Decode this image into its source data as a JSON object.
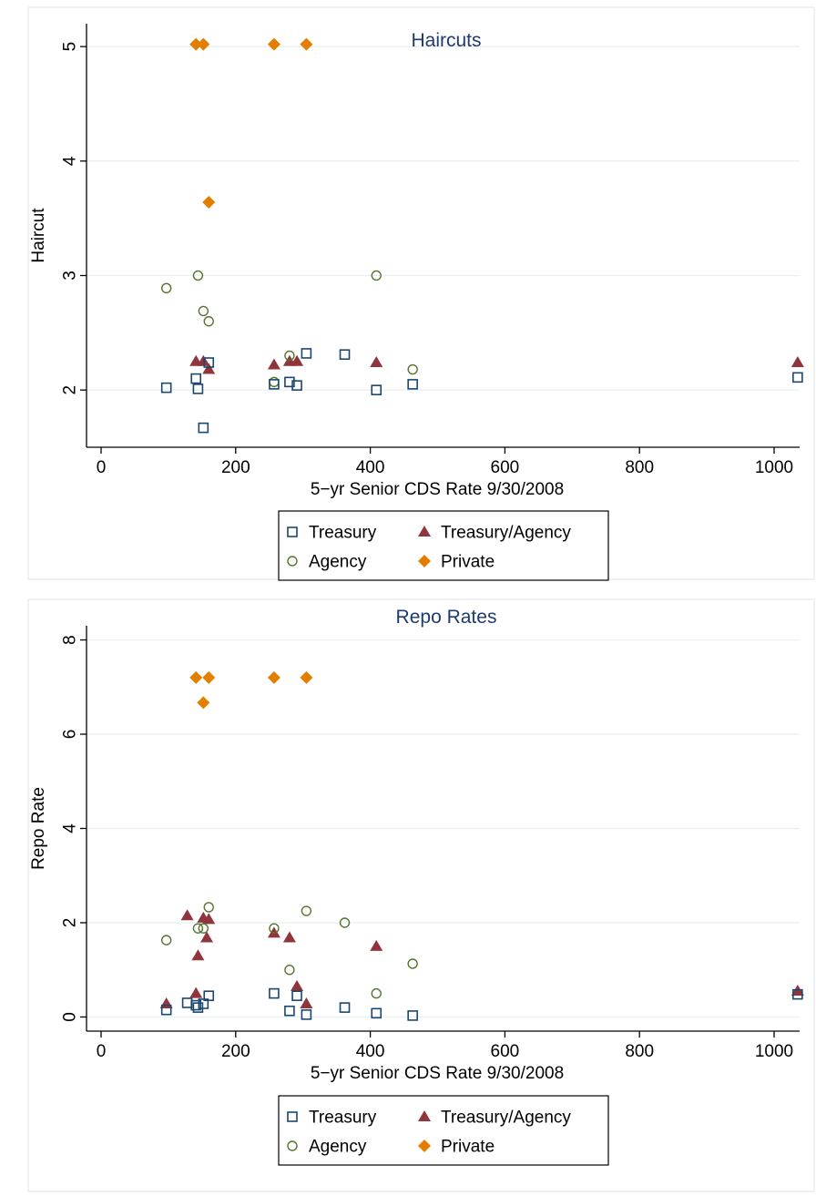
{
  "colors": {
    "treasury": "#1a476f",
    "treasury_agency": "#90353b",
    "agency": "#55752f",
    "private": "#e37e00",
    "title": "#1e3a6e",
    "grid": "#eaf0f2"
  },
  "chart_data": [
    {
      "type": "scatter",
      "title": "Haircuts",
      "xlabel": "5−yr Senior CDS Rate 9/30/2008",
      "ylabel": "Haircut",
      "xlim": [
        0,
        1040
      ],
      "ylim": [
        1.5,
        5.2
      ],
      "xticks": [
        0,
        200,
        400,
        600,
        800,
        1000
      ],
      "yticks": [
        2,
        3,
        4,
        5
      ],
      "grid": true,
      "legend_position": "bottom",
      "series": [
        {
          "name": "Treasury",
          "marker": "square-hollow",
          "points": [
            [
              97,
              2.02
            ],
            [
              141,
              2.1
            ],
            [
              144,
              2.01
            ],
            [
              152,
              1.67
            ],
            [
              160,
              2.24
            ],
            [
              257,
              2.05
            ],
            [
              280,
              2.07
            ],
            [
              291,
              2.04
            ],
            [
              305,
              2.32
            ],
            [
              362,
              2.31
            ],
            [
              409,
              2.0
            ],
            [
              463,
              2.05
            ],
            [
              1035,
              2.11
            ]
          ]
        },
        {
          "name": "Treasury/Agency",
          "marker": "triangle",
          "points": [
            [
              141,
              2.25
            ],
            [
              152,
              2.25
            ],
            [
              160,
              2.18
            ],
            [
              257,
              2.22
            ],
            [
              280,
              2.25
            ],
            [
              291,
              2.25
            ],
            [
              409,
              2.24
            ],
            [
              1035,
              2.24
            ]
          ]
        },
        {
          "name": "Agency",
          "marker": "circle-hollow",
          "points": [
            [
              97,
              2.89
            ],
            [
              144,
              3.0
            ],
            [
              152,
              2.69
            ],
            [
              160,
              2.6
            ],
            [
              257,
              2.07
            ],
            [
              280,
              2.3
            ],
            [
              409,
              3.0
            ],
            [
              463,
              2.18
            ]
          ]
        },
        {
          "name": "Private",
          "marker": "diamond",
          "points": [
            [
              141,
              5.02
            ],
            [
              152,
              5.02
            ],
            [
              257,
              5.02
            ],
            [
              305,
              5.02
            ],
            [
              160,
              3.64
            ]
          ]
        }
      ]
    },
    {
      "type": "scatter",
      "title": "Repo Rates",
      "xlabel": "5−yr Senior CDS Rate 9/30/2008",
      "ylabel": "Repo Rate",
      "xlim": [
        0,
        1040
      ],
      "ylim": [
        -0.3,
        8.3
      ],
      "xticks": [
        0,
        200,
        400,
        600,
        800,
        1000
      ],
      "yticks": [
        0,
        2,
        4,
        6,
        8
      ],
      "grid": true,
      "legend_position": "bottom",
      "series": [
        {
          "name": "Treasury",
          "marker": "square-hollow",
          "points": [
            [
              97,
              0.15
            ],
            [
              128,
              0.3
            ],
            [
              141,
              0.25
            ],
            [
              144,
              0.2
            ],
            [
              152,
              0.28
            ],
            [
              160,
              0.45
            ],
            [
              257,
              0.5
            ],
            [
              280,
              0.13
            ],
            [
              291,
              0.45
            ],
            [
              305,
              0.05
            ],
            [
              362,
              0.2
            ],
            [
              409,
              0.08
            ],
            [
              463,
              0.03
            ],
            [
              1035,
              0.48
            ]
          ]
        },
        {
          "name": "Treasury/Agency",
          "marker": "triangle",
          "points": [
            [
              97,
              0.28
            ],
            [
              128,
              2.15
            ],
            [
              141,
              0.5
            ],
            [
              144,
              1.3
            ],
            [
              152,
              2.1
            ],
            [
              157,
              1.68
            ],
            [
              160,
              2.07
            ],
            [
              257,
              1.78
            ],
            [
              280,
              1.68
            ],
            [
              291,
              0.65
            ],
            [
              305,
              0.28
            ],
            [
              409,
              1.5
            ],
            [
              1035,
              0.55
            ]
          ]
        },
        {
          "name": "Agency",
          "marker": "circle-hollow",
          "points": [
            [
              97,
              1.63
            ],
            [
              144,
              1.88
            ],
            [
              152,
              1.88
            ],
            [
              160,
              2.33
            ],
            [
              257,
              1.88
            ],
            [
              280,
              1.0
            ],
            [
              305,
              2.25
            ],
            [
              362,
              2.0
            ],
            [
              409,
              0.5
            ],
            [
              463,
              1.13
            ]
          ]
        },
        {
          "name": "Private",
          "marker": "diamond",
          "points": [
            [
              141,
              7.2
            ],
            [
              160,
              7.2
            ],
            [
              152,
              6.67
            ],
            [
              257,
              7.2
            ],
            [
              305,
              7.2
            ]
          ]
        }
      ]
    }
  ]
}
